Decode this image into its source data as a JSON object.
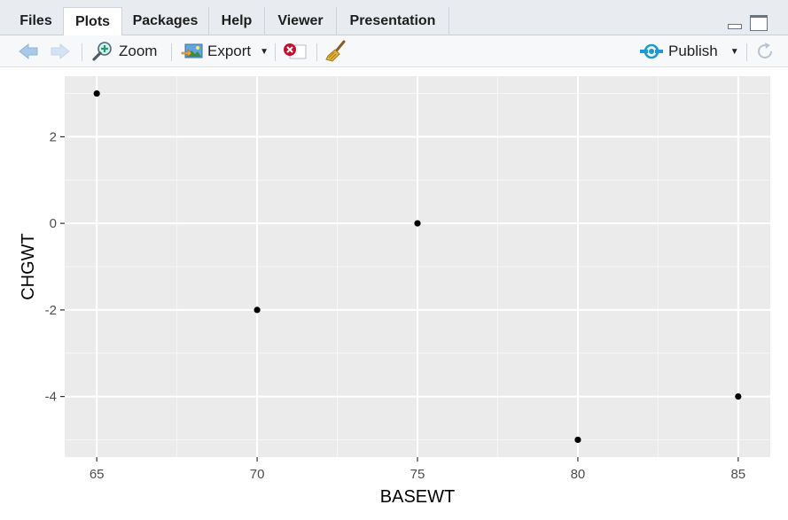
{
  "tabs": [
    {
      "label": "Files",
      "active": false
    },
    {
      "label": "Plots",
      "active": true
    },
    {
      "label": "Packages",
      "active": false
    },
    {
      "label": "Help",
      "active": false
    },
    {
      "label": "Viewer",
      "active": false
    },
    {
      "label": "Presentation",
      "active": false
    }
  ],
  "toolbar": {
    "zoom_label": "Zoom",
    "export_label": "Export",
    "publish_label": "Publish"
  },
  "colors": {
    "panel_bg": "#ebebeb",
    "grid": "#ffffff",
    "point": "#000000",
    "publish_icon": "#1a9bd7",
    "remove_icon": "#c8102e"
  },
  "chart_data": {
    "type": "scatter",
    "title": "",
    "xlabel": "BASEWT",
    "ylabel": "CHGWT",
    "xlim": [
      64,
      86
    ],
    "ylim": [
      -5.4,
      3.4
    ],
    "x_ticks": [
      65,
      70,
      75,
      80,
      85
    ],
    "y_ticks": [
      2,
      0,
      -2,
      -4
    ],
    "grid": true,
    "points": [
      {
        "x": 65,
        "y": 3
      },
      {
        "x": 70,
        "y": -2
      },
      {
        "x": 75,
        "y": 0
      },
      {
        "x": 80,
        "y": -5
      },
      {
        "x": 85,
        "y": -4
      }
    ]
  }
}
